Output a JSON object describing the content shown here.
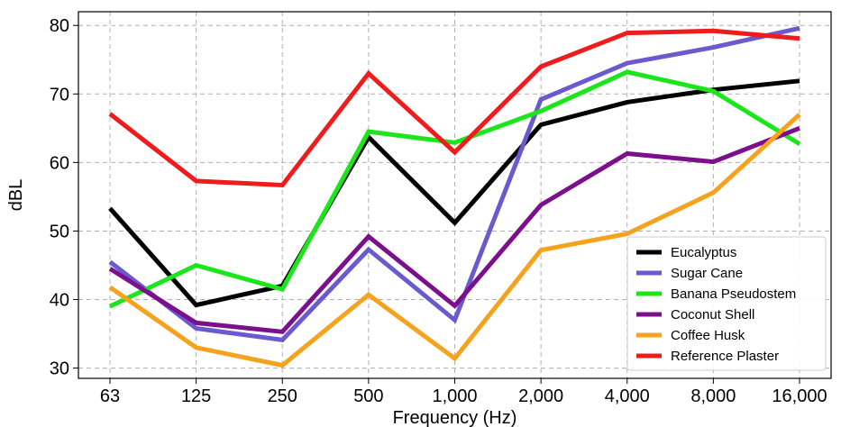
{
  "chart_data": {
    "type": "line",
    "title": "",
    "xlabel": "Frequency (Hz)",
    "ylabel": "dBL",
    "categories": [
      "63",
      "125",
      "250",
      "500",
      "1,000",
      "2,000",
      "4,000",
      "8,000",
      "16,000"
    ],
    "ylim": [
      28.5,
      82
    ],
    "yticks": [
      30,
      40,
      50,
      60,
      70,
      80
    ],
    "grid": true,
    "legend_position": "lower-right",
    "series": [
      {
        "name": "Eucalyptus",
        "color": "#000000",
        "values": [
          53.3,
          39.2,
          42.0,
          63.7,
          51.2,
          65.5,
          68.8,
          70.6,
          71.9
        ]
      },
      {
        "name": "Sugar Cane",
        "color": "#6a5acd",
        "values": [
          45.5,
          35.8,
          34.1,
          47.3,
          37.0,
          69.2,
          74.5,
          76.8,
          79.6
        ]
      },
      {
        "name": "Banana Pseudostem",
        "color": "#1ae61a",
        "values": [
          39.0,
          45.0,
          41.5,
          64.5,
          62.9,
          67.5,
          73.2,
          70.4,
          62.7
        ]
      },
      {
        "name": "Coconut Shell",
        "color": "#7b0f8c",
        "values": [
          44.5,
          36.6,
          35.3,
          49.2,
          39.1,
          53.8,
          61.3,
          60.1,
          65.0
        ]
      },
      {
        "name": "Coffee Husk",
        "color": "#f5a31f",
        "values": [
          41.8,
          33.0,
          30.4,
          40.7,
          31.4,
          47.2,
          49.6,
          55.6,
          67.0
        ]
      },
      {
        "name": "Reference Plaster",
        "color": "#ee1c1c",
        "values": [
          67.1,
          57.3,
          56.7,
          73.0,
          61.5,
          74.0,
          78.9,
          79.2,
          78.1
        ]
      }
    ]
  }
}
